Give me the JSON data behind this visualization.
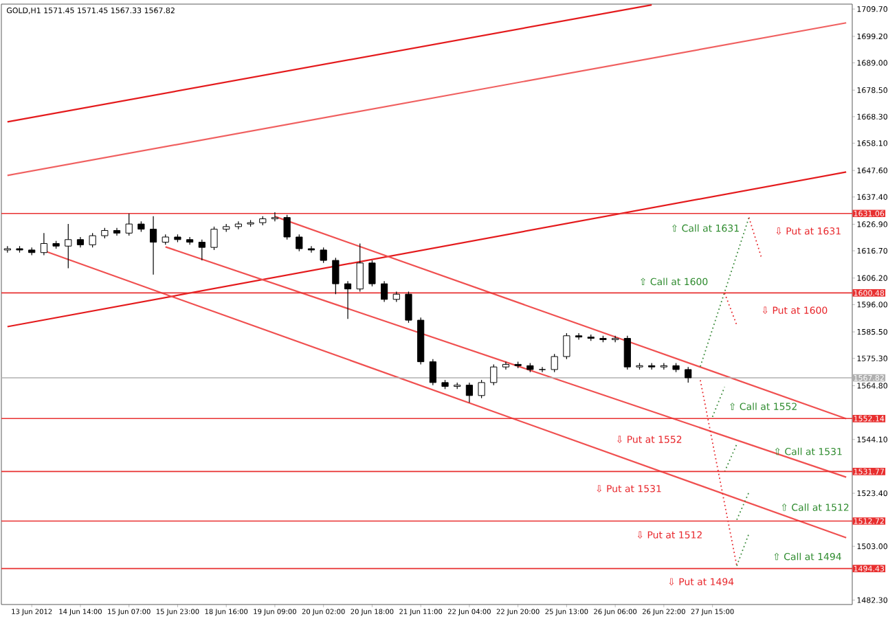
{
  "chart_data": {
    "type": "candlestick",
    "title": "GOLD,H1  1571.45 1571.45 1567.33 1567.82",
    "categories": [
      null,
      null,
      "13 Jun 2012",
      null,
      null,
      null,
      "14 Jun 14:00",
      null,
      null,
      null,
      "15 Jun 07:00",
      null,
      null,
      null,
      "15 Jun 23:00",
      null,
      null,
      null,
      "18 Jun 16:00",
      null,
      null,
      null,
      "19 Jun 09:00",
      null,
      null,
      null,
      "20 Jun 02:00",
      null,
      null,
      null,
      "20 Jun 18:00",
      null,
      null,
      null,
      "21 Jun 11:00",
      null,
      null,
      null,
      "22 Jun 04:00",
      null,
      null,
      null,
      "22 Jun 20:00",
      null,
      null,
      null,
      "25 Jun 13:00",
      null,
      null,
      null,
      "26 Jun 06:00",
      null,
      null,
      null,
      "26 Jun 22:00",
      null,
      null,
      null,
      "27 Jun 15:00",
      null,
      null,
      null,
      null,
      null,
      null,
      null,
      null,
      null,
      null,
      null
    ],
    "ohlc": [
      [
        1617,
        1618.5,
        1616,
        1617.5
      ],
      [
        1617.5,
        1618.5,
        1616,
        1617
      ],
      [
        1617,
        1618,
        1615,
        1616
      ],
      [
        1616,
        1623.5,
        1615,
        1619.5
      ],
      [
        1619.5,
        1620.5,
        1617.5,
        1618.5
      ],
      [
        1618.5,
        1627,
        1610,
        1621
      ],
      [
        1621,
        1622,
        1618,
        1619
      ],
      [
        1619,
        1623.5,
        1618,
        1622.5
      ],
      [
        1622.5,
        1625.5,
        1621.5,
        1624.5
      ],
      [
        1624.5,
        1625.5,
        1622.5,
        1623.5
      ],
      [
        1623.5,
        1631,
        1622.5,
        1627
      ],
      [
        1627,
        1628,
        1624,
        1625
      ],
      [
        1625,
        1630,
        1607.5,
        1620
      ],
      [
        1620,
        1623,
        1619,
        1622
      ],
      [
        1622,
        1623,
        1620,
        1621
      ],
      [
        1621,
        1622,
        1619,
        1620
      ],
      [
        1620,
        1621,
        1613,
        1618
      ],
      [
        1618,
        1626,
        1617,
        1625
      ],
      [
        1625,
        1627,
        1624,
        1626
      ],
      [
        1626,
        1628,
        1625,
        1627
      ],
      [
        1627,
        1628.5,
        1626,
        1627.5
      ],
      [
        1627.5,
        1630,
        1626.5,
        1629
      ],
      [
        1629,
        1631.5,
        1628,
        1629.5
      ],
      [
        1629.5,
        1630.5,
        1621,
        1622
      ],
      [
        1622,
        1623,
        1616.5,
        1617.5
      ],
      [
        1617.5,
        1618.5,
        1616,
        1617
      ],
      [
        1617,
        1618,
        1612,
        1613
      ],
      [
        1613,
        1614,
        1600,
        1604
      ],
      [
        1604,
        1605,
        1590.5,
        1602
      ],
      [
        1602,
        1619.5,
        1601,
        1612
      ],
      [
        1612,
        1613,
        1603,
        1604
      ],
      [
        1604,
        1605,
        1597,
        1598
      ],
      [
        1598,
        1601,
        1597,
        1600
      ],
      [
        1600,
        1601,
        1589,
        1590
      ],
      [
        1590,
        1591,
        1573,
        1574
      ],
      [
        1574,
        1575,
        1565,
        1566
      ],
      [
        1566,
        1567,
        1563.5,
        1564.5
      ],
      [
        1564.5,
        1566,
        1563.5,
        1565
      ],
      [
        1565,
        1566,
        1558.3,
        1561
      ],
      [
        1561,
        1567,
        1560,
        1566
      ],
      [
        1566,
        1573,
        1565,
        1572
      ],
      [
        1572,
        1574,
        1571,
        1573
      ],
      [
        1573,
        1574,
        1571.5,
        1572.5
      ],
      [
        1572.5,
        1573.5,
        1570,
        1571
      ],
      [
        1571,
        1572,
        1570,
        1571
      ],
      [
        1571,
        1577,
        1570,
        1576
      ],
      [
        1576,
        1585,
        1575,
        1584
      ],
      [
        1584,
        1585,
        1582.5,
        1583.5
      ],
      [
        1583.5,
        1584.5,
        1582,
        1583
      ],
      [
        1583,
        1584,
        1581.5,
        1582.5
      ],
      [
        1582.5,
        1584,
        1581.5,
        1583
      ],
      [
        1583,
        1584,
        1571,
        1572
      ],
      [
        1572,
        1573.5,
        1571,
        1572.5
      ],
      [
        1572.5,
        1573.5,
        1571,
        1572
      ],
      [
        1572,
        1573.5,
        1571,
        1572.5
      ],
      [
        1572.5,
        1573.5,
        1570,
        1571
      ],
      [
        1571,
        1572,
        1566,
        1567.82
      ],
      null,
      null,
      null,
      null,
      null,
      null,
      null,
      null,
      null,
      null,
      null,
      null,
      null
    ],
    "series": [
      {
        "type": "line",
        "color": "#e41a1c",
        "values": [
          1666.3,
          null,
          null,
          null,
          null,
          null,
          null,
          null,
          null,
          null,
          null,
          null,
          null,
          null,
          null,
          null,
          null,
          null,
          null,
          null,
          null,
          null,
          null,
          null,
          null,
          null,
          null,
          null,
          null,
          null,
          null,
          null,
          null,
          null,
          null,
          null,
          null,
          null,
          null,
          null,
          null,
          null,
          null,
          null,
          null,
          null,
          null,
          null,
          null,
          null,
          null,
          null,
          null,
          1711.3,
          null,
          null,
          null,
          null,
          null,
          null,
          null,
          null,
          null,
          null,
          null,
          null,
          null,
          null,
          null,
          null
        ]
      },
      {
        "type": "line",
        "color": "#f06060",
        "values": [
          1645.7,
          null,
          null,
          null,
          null,
          null,
          null,
          null,
          null,
          null,
          null,
          null,
          null,
          null,
          null,
          null,
          null,
          null,
          null,
          null,
          null,
          null,
          null,
          null,
          null,
          null,
          null,
          null,
          null,
          null,
          null,
          null,
          null,
          null,
          null,
          null,
          null,
          null,
          null,
          null,
          null,
          null,
          null,
          null,
          null,
          null,
          null,
          null,
          null,
          null,
          null,
          null,
          null,
          null,
          null,
          null,
          null,
          null,
          null,
          null,
          null,
          null,
          null,
          null,
          null,
          null,
          null,
          null,
          null,
          1704.4
        ]
      },
      {
        "type": "line",
        "color": "#e41a1c",
        "values": [
          1587.5,
          null,
          null,
          null,
          null,
          null,
          null,
          null,
          null,
          null,
          null,
          null,
          null,
          null,
          null,
          null,
          null,
          null,
          null,
          null,
          null,
          null,
          null,
          null,
          null,
          null,
          null,
          null,
          null,
          null,
          null,
          null,
          null,
          null,
          null,
          null,
          null,
          null,
          null,
          null,
          null,
          null,
          null,
          null,
          null,
          null,
          null,
          null,
          null,
          null,
          null,
          null,
          null,
          null,
          null,
          null,
          null,
          null,
          null,
          null,
          null,
          null,
          null,
          null,
          null,
          null,
          null,
          null,
          null,
          1647.0
        ]
      },
      {
        "type": "line",
        "color": "#f05050",
        "values": [
          null,
          null,
          null,
          null,
          null,
          null,
          null,
          null,
          null,
          null,
          null,
          null,
          null,
          null,
          null,
          null,
          null,
          null,
          null,
          null,
          null,
          null,
          1629.9,
          null,
          null,
          null,
          null,
          null,
          null,
          null,
          null,
          null,
          null,
          null,
          null,
          null,
          null,
          null,
          null,
          null,
          null,
          null,
          null,
          null,
          null,
          null,
          null,
          null,
          null,
          null,
          null,
          null,
          null,
          null,
          null,
          null,
          null,
          null,
          null,
          null,
          null,
          null,
          null,
          null,
          null,
          null,
          null,
          null,
          null,
          1552.1
        ]
      },
      {
        "type": "line",
        "color": "#f05050",
        "values": [
          null,
          null,
          null,
          null,
          null,
          null,
          null,
          null,
          null,
          null,
          null,
          null,
          null,
          1618.2,
          null,
          null,
          null,
          null,
          null,
          null,
          null,
          null,
          null,
          null,
          null,
          null,
          null,
          null,
          null,
          null,
          null,
          null,
          null,
          null,
          null,
          null,
          null,
          null,
          null,
          null,
          null,
          null,
          null,
          null,
          null,
          null,
          null,
          null,
          null,
          null,
          null,
          null,
          null,
          null,
          null,
          null,
          null,
          null,
          null,
          null,
          null,
          null,
          null,
          null,
          null,
          null,
          null,
          null,
          null,
          1529.6
        ]
      },
      {
        "type": "line",
        "color": "#f05050",
        "values": [
          null,
          null,
          null,
          1616.7,
          null,
          null,
          null,
          null,
          null,
          null,
          null,
          null,
          null,
          null,
          null,
          null,
          null,
          null,
          null,
          null,
          null,
          null,
          null,
          null,
          null,
          null,
          null,
          null,
          null,
          null,
          null,
          null,
          null,
          null,
          null,
          null,
          null,
          null,
          null,
          null,
          null,
          null,
          null,
          null,
          null,
          null,
          null,
          null,
          null,
          null,
          null,
          null,
          null,
          null,
          null,
          null,
          null,
          null,
          null,
          null,
          null,
          null,
          null,
          null,
          null,
          null,
          null,
          null,
          null,
          1506.3
        ]
      },
      {
        "type": "line",
        "color": "#3a8a3a",
        "line_style": "dotted",
        "values": [
          null,
          null,
          null,
          null,
          null,
          null,
          null,
          null,
          null,
          null,
          null,
          null,
          null,
          null,
          null,
          null,
          null,
          null,
          null,
          null,
          null,
          null,
          null,
          null,
          null,
          null,
          null,
          null,
          null,
          null,
          null,
          null,
          null,
          null,
          null,
          null,
          null,
          null,
          null,
          null,
          null,
          null,
          null,
          null,
          null,
          null,
          null,
          null,
          null,
          null,
          null,
          null,
          null,
          null,
          null,
          null,
          null,
          1572.2,
          null,
          null,
          null,
          1629.5,
          null,
          null,
          null,
          null,
          null,
          null,
          null,
          null
        ]
      },
      {
        "type": "line",
        "color": "#e8262b",
        "line_style": "dotted",
        "values": [
          null,
          null,
          null,
          null,
          null,
          null,
          null,
          null,
          null,
          null,
          null,
          null,
          null,
          null,
          null,
          null,
          null,
          null,
          null,
          null,
          null,
          null,
          null,
          null,
          null,
          null,
          null,
          null,
          null,
          null,
          null,
          null,
          null,
          null,
          null,
          null,
          null,
          null,
          null,
          null,
          null,
          null,
          null,
          null,
          null,
          null,
          null,
          null,
          null,
          null,
          null,
          null,
          null,
          null,
          null,
          null,
          null,
          null,
          null,
          null,
          null,
          1629.5,
          1614.5,
          null,
          null,
          null,
          null,
          null,
          null,
          null
        ]
      },
      {
        "type": "line",
        "color": "#e8262b",
        "line_style": "dotted",
        "values": [
          null,
          null,
          null,
          null,
          null,
          null,
          null,
          null,
          null,
          null,
          null,
          null,
          null,
          null,
          null,
          null,
          null,
          null,
          null,
          null,
          null,
          null,
          null,
          null,
          null,
          null,
          null,
          null,
          null,
          null,
          null,
          null,
          null,
          null,
          null,
          null,
          null,
          null,
          null,
          null,
          null,
          null,
          null,
          null,
          null,
          null,
          null,
          null,
          null,
          null,
          null,
          null,
          null,
          null,
          null,
          null,
          null,
          null,
          null,
          1600.4,
          1588.1,
          null,
          null,
          null,
          null,
          null,
          null,
          null,
          null,
          null
        ]
      },
      {
        "type": "line",
        "color": "#e8262b",
        "line_style": "dotted",
        "values": [
          null,
          null,
          null,
          null,
          null,
          null,
          null,
          null,
          null,
          null,
          null,
          null,
          null,
          null,
          null,
          null,
          null,
          null,
          null,
          null,
          null,
          null,
          null,
          null,
          null,
          null,
          null,
          null,
          null,
          null,
          null,
          null,
          null,
          null,
          null,
          null,
          null,
          null,
          null,
          null,
          null,
          null,
          null,
          null,
          null,
          null,
          null,
          null,
          null,
          null,
          null,
          null,
          null,
          null,
          null,
          null,
          null,
          1566.9,
          null,
          null,
          1495.5,
          null,
          null,
          null,
          null,
          null,
          null,
          null,
          null,
          null
        ]
      },
      {
        "type": "line",
        "color": "#3a8a3a",
        "line_style": "dotted",
        "values": [
          null,
          null,
          null,
          null,
          null,
          null,
          null,
          null,
          null,
          null,
          null,
          null,
          null,
          null,
          null,
          null,
          null,
          null,
          null,
          null,
          null,
          null,
          null,
          null,
          null,
          null,
          null,
          null,
          null,
          null,
          null,
          null,
          null,
          null,
          null,
          null,
          null,
          null,
          null,
          null,
          null,
          null,
          null,
          null,
          null,
          null,
          null,
          null,
          null,
          null,
          null,
          null,
          null,
          null,
          null,
          null,
          null,
          null,
          1552.8,
          1564.3,
          null,
          null,
          null,
          null,
          null,
          null,
          null,
          null,
          null,
          null
        ]
      },
      {
        "type": "line",
        "color": "#3a8a3a",
        "line_style": "dotted",
        "values": [
          null,
          null,
          null,
          null,
          null,
          null,
          null,
          null,
          null,
          null,
          null,
          null,
          null,
          null,
          null,
          null,
          null,
          null,
          null,
          null,
          null,
          null,
          null,
          null,
          null,
          null,
          null,
          null,
          null,
          null,
          null,
          null,
          null,
          null,
          null,
          null,
          null,
          null,
          null,
          null,
          null,
          null,
          null,
          null,
          null,
          null,
          null,
          null,
          null,
          null,
          null,
          null,
          null,
          null,
          null,
          null,
          null,
          null,
          null,
          1531.7,
          1542.3,
          null,
          null,
          null,
          null,
          null,
          null,
          null,
          null,
          null
        ]
      },
      {
        "type": "line",
        "color": "#3a8a3a",
        "line_style": "dotted",
        "values": [
          null,
          null,
          null,
          null,
          null,
          null,
          null,
          null,
          null,
          null,
          null,
          null,
          null,
          null,
          null,
          null,
          null,
          null,
          null,
          null,
          null,
          null,
          null,
          null,
          null,
          null,
          null,
          null,
          null,
          null,
          null,
          null,
          null,
          null,
          null,
          null,
          null,
          null,
          null,
          null,
          null,
          null,
          null,
          null,
          null,
          null,
          null,
          null,
          null,
          null,
          null,
          null,
          null,
          null,
          null,
          null,
          null,
          null,
          null,
          null,
          1513.2,
          1523.8,
          null,
          null,
          null,
          null,
          null,
          null,
          null,
          null
        ]
      },
      {
        "type": "line",
        "color": "#3a8a3a",
        "line_style": "dotted",
        "values": [
          null,
          null,
          null,
          null,
          null,
          null,
          null,
          null,
          null,
          null,
          null,
          null,
          null,
          null,
          null,
          null,
          null,
          null,
          null,
          null,
          null,
          null,
          null,
          null,
          null,
          null,
          null,
          null,
          null,
          null,
          null,
          null,
          null,
          null,
          null,
          null,
          null,
          null,
          null,
          null,
          null,
          null,
          null,
          null,
          null,
          null,
          null,
          null,
          null,
          null,
          null,
          null,
          null,
          null,
          null,
          null,
          null,
          null,
          null,
          null,
          1495.5,
          1507.9,
          null,
          null,
          null,
          null,
          null,
          null,
          null,
          null
        ]
      }
    ],
    "ref_lines": [
      {
        "axis": "y",
        "value": 1631.06,
        "label": "1631.06",
        "color": "#e83030"
      },
      {
        "axis": "y",
        "value": 1600.48,
        "label": "1600.48",
        "color": "#e83030"
      },
      {
        "axis": "y",
        "value": 1567.82,
        "label": "1567.82",
        "color": "#b0b0b0"
      },
      {
        "axis": "y",
        "value": 1552.14,
        "label": "1552.14",
        "color": "#e83030"
      },
      {
        "axis": "y",
        "value": 1531.77,
        "label": "1531.77",
        "color": "#e83030"
      },
      {
        "axis": "y",
        "value": 1512.72,
        "label": "1512.72",
        "color": "#e83030"
      },
      {
        "axis": "y",
        "value": 1494.43,
        "label": "1494.43",
        "color": "#e83030"
      }
    ],
    "annotations": [
      "⇧ Call at 1631",
      "⇩ Put at 1631",
      "⇧ Call at 1600",
      "⇩ Put at 1600",
      "⇧ Call at 1552",
      "⇩ Put at 1552",
      "⇧ Call at 1531",
      "⇩ Put at 1531",
      "⇧ Call at 1512",
      "⇩ Put at 1512",
      "⇧ Call at 1494",
      "⇩ Put at 1494"
    ],
    "ylim": [
      1480.6,
      1711.6
    ],
    "yticks": [
      {
        "value": 1482.3,
        "label": "1482.30"
      },
      {
        "value": 1503,
        "label": "1503.00"
      },
      {
        "value": 1523.4,
        "label": "1523.40"
      },
      {
        "value": 1544.1,
        "label": "1544.10"
      },
      {
        "value": 1564.8,
        "label": "1564.80"
      },
      {
        "value": 1575.3,
        "label": "1575.30"
      },
      {
        "value": 1585.5,
        "label": "1585.50"
      },
      {
        "value": 1596,
        "label": "1596.00"
      },
      {
        "value": 1606.2,
        "label": "1606.20"
      },
      {
        "value": 1616.7,
        "label": "1616.70"
      },
      {
        "value": 1626.9,
        "label": "1626.90"
      },
      {
        "value": 1637.4,
        "label": "1637.40"
      },
      {
        "value": 1647.6,
        "label": "1647.60"
      },
      {
        "value": 1658.1,
        "label": "1658.10"
      },
      {
        "value": 1668.3,
        "label": "1668.30"
      },
      {
        "value": 1678.5,
        "label": "1678.50"
      },
      {
        "value": 1689,
        "label": "1689.00"
      },
      {
        "value": 1699.2,
        "label": "1699.20"
      },
      {
        "value": 1709.7,
        "label": "1709.70"
      }
    ]
  }
}
